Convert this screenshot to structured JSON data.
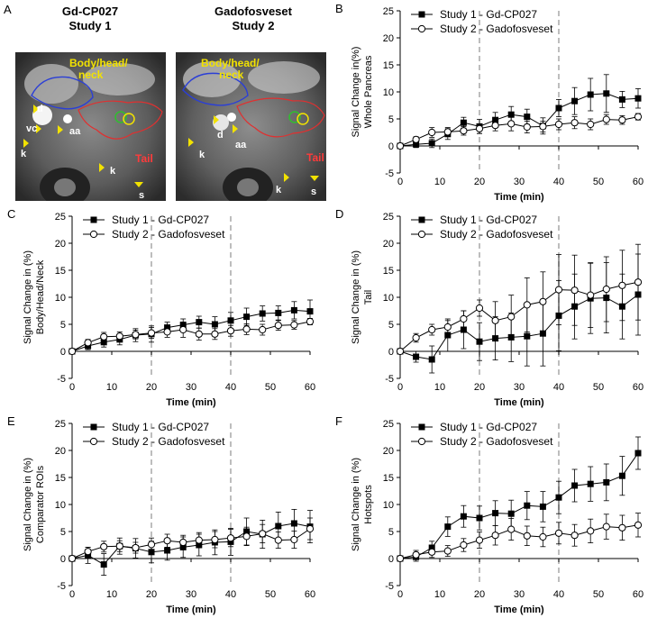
{
  "panels": {
    "A": {
      "letter": "A",
      "left_title": "Gd-CP027",
      "left_subtitle": "Study 1",
      "right_title": "Gadofosveset",
      "right_subtitle": "Study 2",
      "region_label": "Body/head/\nneck",
      "tail_label": "Tail",
      "markers_left": [
        "d",
        "vc",
        "aa",
        "k",
        "k",
        "s"
      ],
      "markers_right": [
        "d",
        "aa",
        "k",
        "k",
        "s"
      ]
    }
  },
  "legend": {
    "series1": "Study 1 - Gd-CP027",
    "series2": "Study 2 - Gadofosveset"
  },
  "colors": {
    "marker": "#000000",
    "line": "#000000",
    "dashed": "#9a9a9a",
    "region_blue": "#2b3fd6",
    "region_red": "#e03030",
    "label_yellow": "#f2e200",
    "label_red": "#ff3b3b"
  },
  "chart_data": [
    {
      "id": "B",
      "type": "line",
      "letter": "B",
      "title": "",
      "xlabel": "Time (min)",
      "ylabel_lines": [
        "Signal Change in(%)",
        "Whole Pancreas"
      ],
      "xlim": [
        0,
        60
      ],
      "ylim": [
        -5,
        25
      ],
      "xticks": [
        0,
        10,
        20,
        30,
        40,
        50,
        60
      ],
      "yticks": [
        -5,
        0,
        5,
        10,
        15,
        20,
        25
      ],
      "vlines": [
        20,
        40
      ],
      "series": [
        {
          "name": "Study 1 - Gd-CP027",
          "marker": "square",
          "x": [
            0,
            4,
            8,
            12,
            16,
            20,
            24,
            28,
            32,
            36,
            40,
            44,
            48,
            52,
            56,
            60
          ],
          "y": [
            0,
            0.3,
            0.5,
            2.2,
            4.3,
            3.6,
            4.8,
            5.8,
            5.4,
            3.7,
            7.0,
            8.3,
            9.5,
            9.7,
            8.6,
            8.8
          ],
          "err": [
            0.4,
            0.6,
            0.8,
            1.0,
            1.0,
            1.3,
            1.4,
            1.5,
            1.4,
            1.5,
            1.6,
            2.5,
            3.0,
            3.5,
            1.5,
            1.8
          ]
        },
        {
          "name": "Study 2 - Gadofosveset",
          "marker": "circle",
          "x": [
            0,
            4,
            8,
            12,
            16,
            20,
            24,
            28,
            32,
            36,
            40,
            44,
            48,
            52,
            56,
            60
          ],
          "y": [
            0,
            1.2,
            2.5,
            2.6,
            2.8,
            3.2,
            3.8,
            4.1,
            3.5,
            3.6,
            4.0,
            4.3,
            4.0,
            4.9,
            4.8,
            5.4
          ],
          "err": [
            0.3,
            0.5,
            0.9,
            0.8,
            0.8,
            0.9,
            1.0,
            1.3,
            1.1,
            1.0,
            1.0,
            1.1,
            1.0,
            0.9,
            0.8,
            0.6
          ]
        }
      ]
    },
    {
      "id": "C",
      "type": "line",
      "letter": "C",
      "title": "",
      "xlabel": "Time (min)",
      "ylabel_lines": [
        "Signal Change in (%)",
        "Body/Head/Neck"
      ],
      "xlim": [
        0,
        60
      ],
      "ylim": [
        -5,
        25
      ],
      "xticks": [
        0,
        10,
        20,
        30,
        40,
        50,
        60
      ],
      "yticks": [
        -5,
        0,
        5,
        10,
        15,
        20,
        25
      ],
      "vlines": [
        20,
        40
      ],
      "series": [
        {
          "name": "Study 1 - Gd-CP027",
          "marker": "square",
          "x": [
            0,
            4,
            8,
            12,
            16,
            20,
            24,
            28,
            32,
            36,
            40,
            44,
            48,
            52,
            56,
            60
          ],
          "y": [
            0,
            1.0,
            1.7,
            2.2,
            3.0,
            3.2,
            4.4,
            4.9,
            5.4,
            5.0,
            5.7,
            6.4,
            7.0,
            7.1,
            7.6,
            7.4
          ],
          "err": [
            0.3,
            0.7,
            0.9,
            1.0,
            1.2,
            1.5,
            1.0,
            1.1,
            1.1,
            1.4,
            1.5,
            1.6,
            1.4,
            1.3,
            1.6,
            2.1
          ]
        },
        {
          "name": "Study 2 - Gadofosveset",
          "marker": "circle",
          "x": [
            0,
            4,
            8,
            12,
            16,
            20,
            24,
            28,
            32,
            36,
            40,
            44,
            48,
            52,
            56,
            60
          ],
          "y": [
            0,
            1.6,
            2.7,
            2.8,
            3.1,
            3.4,
            3.6,
            4.0,
            3.2,
            3.2,
            3.8,
            4.1,
            4.0,
            4.8,
            4.9,
            5.5
          ],
          "err": [
            0.3,
            0.6,
            0.8,
            0.8,
            0.8,
            1.0,
            1.0,
            1.4,
            1.1,
            1.0,
            1.0,
            1.0,
            1.0,
            0.9,
            0.8,
            0.6
          ]
        }
      ]
    },
    {
      "id": "D",
      "type": "line",
      "letter": "D",
      "title": "",
      "xlabel": "Time (min)",
      "ylabel_lines": [
        "Signal Change in (%)",
        "Tail"
      ],
      "xlim": [
        0,
        60
      ],
      "ylim": [
        -5,
        25
      ],
      "xticks": [
        0,
        10,
        20,
        30,
        40,
        50,
        60
      ],
      "yticks": [
        -5,
        0,
        5,
        10,
        15,
        20,
        25
      ],
      "vlines": [
        20,
        40
      ],
      "series": [
        {
          "name": "Study 1 - Gd-CP027",
          "marker": "square",
          "x": [
            0,
            4,
            8,
            12,
            16,
            20,
            24,
            28,
            32,
            36,
            40,
            44,
            48,
            52,
            56,
            60
          ],
          "y": [
            0,
            -1.0,
            -1.5,
            3.0,
            4.0,
            1.8,
            2.4,
            2.6,
            2.8,
            3.3,
            6.6,
            8.3,
            9.8,
            9.9,
            8.3,
            10.5
          ],
          "err": [
            0.5,
            1.0,
            2.5,
            3.0,
            3.5,
            3.5,
            4.0,
            4.5,
            5.5,
            6.0,
            6.5,
            6.0,
            6.5,
            6.5,
            6.0,
            7.5
          ]
        },
        {
          "name": "Study 2 - Gadofosveset",
          "marker": "circle",
          "x": [
            0,
            4,
            8,
            12,
            16,
            20,
            24,
            28,
            32,
            36,
            40,
            44,
            48,
            52,
            56,
            60
          ],
          "y": [
            0,
            2.5,
            4.0,
            4.5,
            6.0,
            8.0,
            5.7,
            6.4,
            8.6,
            9.2,
            11.4,
            11.3,
            10.4,
            11.5,
            12.2,
            12.8
          ],
          "err": [
            0.4,
            0.8,
            1.0,
            1.2,
            1.5,
            1.5,
            3.5,
            4.0,
            5.0,
            5.5,
            6.5,
            6.5,
            6.0,
            6.0,
            6.5,
            7.0
          ]
        }
      ]
    },
    {
      "id": "E",
      "type": "line",
      "letter": "E",
      "title": "",
      "xlabel": "Time (min)",
      "ylabel_lines": [
        "Signal Change in (%)",
        "Comparator ROIs"
      ],
      "xlim": [
        0,
        60
      ],
      "ylim": [
        -5,
        25
      ],
      "xticks": [
        0,
        10,
        20,
        30,
        40,
        50,
        60
      ],
      "yticks": [
        -5,
        0,
        5,
        10,
        15,
        20,
        25
      ],
      "vlines": [
        20,
        40
      ],
      "series": [
        {
          "name": "Study 1 - Gd-CP027",
          "marker": "square",
          "x": [
            0,
            4,
            8,
            12,
            16,
            20,
            24,
            28,
            32,
            36,
            40,
            44,
            48,
            52,
            56,
            60
          ],
          "y": [
            0,
            0.6,
            -1.1,
            2.3,
            1.9,
            1.2,
            1.5,
            2.1,
            2.5,
            3.0,
            3.1,
            5.0,
            4.5,
            6.0,
            6.5,
            5.9
          ],
          "err": [
            0.4,
            1.5,
            2.0,
            1.5,
            1.8,
            2.0,
            1.8,
            1.9,
            2.0,
            2.3,
            2.5,
            2.5,
            2.6,
            2.6,
            2.6,
            3.0
          ]
        },
        {
          "name": "Study 2 - Gadofosveset",
          "marker": "circle",
          "x": [
            0,
            4,
            8,
            12,
            16,
            20,
            24,
            28,
            32,
            36,
            40,
            44,
            48,
            52,
            56,
            60
          ],
          "y": [
            0,
            1.3,
            2.2,
            2.3,
            2.0,
            2.6,
            3.3,
            3.0,
            3.4,
            3.5,
            3.8,
            4.1,
            4.6,
            3.4,
            3.5,
            5.5
          ],
          "err": [
            0.3,
            0.8,
            1.0,
            1.0,
            1.0,
            1.2,
            1.2,
            1.3,
            1.4,
            1.5,
            1.6,
            1.7,
            1.7,
            1.5,
            1.6,
            2.0
          ]
        }
      ]
    },
    {
      "id": "F",
      "type": "line",
      "letter": "F",
      "title": "",
      "xlabel": "Time (min)",
      "ylabel_lines": [
        "Signal Change in (%)",
        "Hotspots"
      ],
      "xlim": [
        0,
        60
      ],
      "ylim": [
        -5,
        25
      ],
      "xticks": [
        0,
        10,
        20,
        30,
        40,
        50,
        60
      ],
      "yticks": [
        -5,
        0,
        5,
        10,
        15,
        20,
        25
      ],
      "vlines": [
        20,
        40
      ],
      "series": [
        {
          "name": "Study 1 - Gd-CP027",
          "marker": "square",
          "x": [
            0,
            4,
            8,
            12,
            16,
            20,
            24,
            28,
            32,
            36,
            40,
            44,
            48,
            52,
            56,
            60
          ],
          "y": [
            0,
            0.3,
            2.0,
            5.9,
            7.8,
            7.5,
            8.4,
            8.3,
            9.8,
            9.6,
            11.3,
            13.5,
            13.8,
            14.1,
            15.3,
            19.5
          ],
          "err": [
            0.4,
            0.8,
            1.2,
            1.8,
            2.0,
            2.2,
            2.3,
            2.5,
            2.6,
            2.8,
            3.0,
            3.0,
            3.2,
            3.4,
            3.6,
            3.0
          ]
        },
        {
          "name": "Study 2 - Gadofosveset",
          "marker": "circle",
          "x": [
            0,
            4,
            8,
            12,
            16,
            20,
            24,
            28,
            32,
            36,
            40,
            44,
            48,
            52,
            56,
            60
          ],
          "y": [
            0,
            0.7,
            1.2,
            1.4,
            2.5,
            3.4,
            4.3,
            5.4,
            4.2,
            4.0,
            4.7,
            4.3,
            5.1,
            5.9,
            5.7,
            6.2
          ],
          "err": [
            0.3,
            0.8,
            1.0,
            1.0,
            1.2,
            1.5,
            1.8,
            2.0,
            1.8,
            1.8,
            2.0,
            2.0,
            2.2,
            2.3,
            2.3,
            2.2
          ]
        }
      ]
    }
  ]
}
